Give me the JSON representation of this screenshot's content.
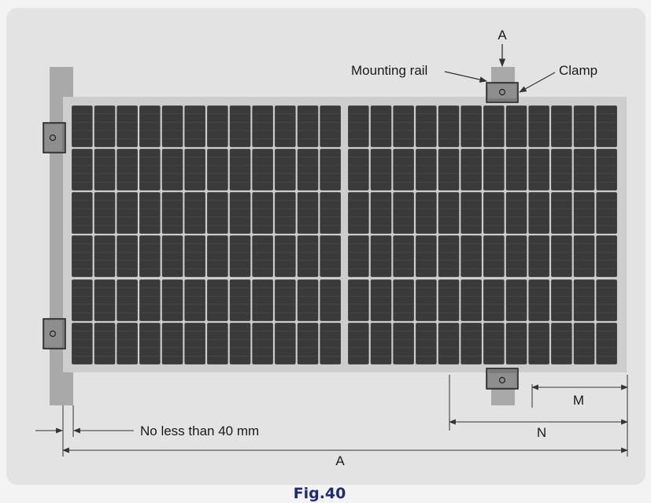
{
  "diagram": {
    "top_label": "A",
    "mounting_rail_label": "Mounting rail",
    "clamp_label": "Clamp",
    "edge_distance_label": "No less than 40 mm",
    "dim_M_label": "M",
    "dim_N_label": "N",
    "dim_A_label": "A",
    "caption": "Fig.40"
  },
  "panel": {
    "halves": 2,
    "columns_per_half": 12,
    "row_blocks": 3,
    "rows_per_block": 2,
    "frame_color": "#cdcdcd",
    "cell_color": "#3a3a3a"
  },
  "colors": {
    "card_bg": "#e3e3e3",
    "rail": "#a9a9a9",
    "clamp": "#707070",
    "line": "#333333",
    "caption": "#1e2a78"
  }
}
